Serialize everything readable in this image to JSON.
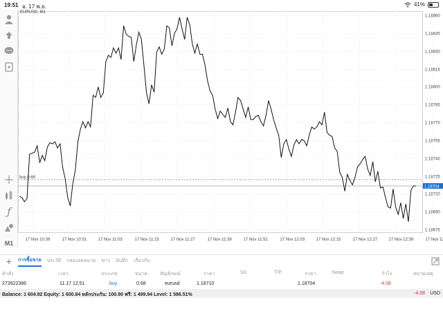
{
  "status": {
    "time": "19:51",
    "date": "อ. 17 พ.ย.",
    "battery": "41%",
    "battery_level": 0.41
  },
  "chart": {
    "symbol_label": "EURUSD, M1",
    "price_line_label": "buy 0.68",
    "current_price": "1.18704",
    "current_price_color": "#1e6fd0",
    "y_ticks": [
      "1.18860",
      "1.18845",
      "1.18830",
      "1.18815",
      "1.18800",
      "1.18785",
      "1.18770",
      "1.18755",
      "1.18740",
      "1.18725",
      "1.18720",
      "1.18690",
      "1.18675"
    ],
    "x_ticks": [
      "17 Nov 10:39",
      "17 Nov 10:51",
      "17 Nov 11:03",
      "17 Nov 11:15",
      "17 Nov 11:27",
      "17 Nov 11:39",
      "17 Nov 11:51",
      "17 Nov 12:03",
      "17 Nov 12:15",
      "17 Nov 12:27",
      "17 Nov 12:39",
      "17 Nov 12:51"
    ]
  },
  "chart_data": {
    "type": "line",
    "title": "EURUSD, M1",
    "xlabel": "",
    "ylabel": "",
    "grid": true,
    "ylim": [
      1.1866,
      1.1887
    ],
    "y_ticks": [
      1.1886,
      1.18845,
      1.1883,
      1.18815,
      1.188,
      1.18785,
      1.1877,
      1.18755,
      1.1874,
      1.18725,
      1.1872,
      1.1869,
      1.18675
    ],
    "x_ticks": [
      "17 Nov 10:39",
      "17 Nov 10:51",
      "17 Nov 11:03",
      "17 Nov 11:15",
      "17 Nov 11:27",
      "17 Nov 11:39",
      "17 Nov 11:51",
      "17 Nov 12:03",
      "17 Nov 12:15",
      "17 Nov 12:27",
      "17 Nov 12:39",
      "17 Nov 12:51"
    ],
    "entry_price": 1.1871,
    "current_price": 1.18704,
    "series": [
      {
        "values": [
          1.18694,
          1.18693,
          1.18689,
          1.18692,
          1.18734,
          1.18735,
          1.18736,
          1.18742,
          1.18726,
          1.18733,
          1.18728,
          1.18741,
          1.18745,
          1.18744,
          1.18746,
          1.1874,
          1.18744,
          1.18722,
          1.18711,
          1.18693,
          1.18685,
          1.18706,
          1.18719,
          1.18746,
          1.18758,
          1.18765,
          1.18759,
          1.18765,
          1.1876,
          1.1879,
          1.18788,
          1.18798,
          1.18788,
          1.18792,
          1.18822,
          1.18828,
          1.18826,
          1.18835,
          1.1883,
          1.18835,
          1.18824,
          1.18856,
          1.18848,
          1.18846,
          1.18845,
          1.18822,
          1.18838,
          1.1885,
          1.18843,
          1.18818,
          1.18792,
          1.18782,
          1.188,
          1.18793,
          1.18831,
          1.18836,
          1.18829,
          1.18834,
          1.18856,
          1.18854,
          1.18837,
          1.18849,
          1.18853,
          1.18864,
          1.18853,
          1.18843,
          1.18864,
          1.18857,
          1.18839,
          1.1883,
          1.18839,
          1.18829,
          1.18829,
          1.18819,
          1.18804,
          1.18794,
          1.1879,
          1.18777,
          1.18768,
          1.18775,
          1.18772,
          1.18769,
          1.18778,
          1.18765,
          1.18762,
          1.18774,
          1.18788,
          1.18785,
          1.18777,
          1.18769,
          1.18779,
          1.18767,
          1.18767,
          1.1877,
          1.18771,
          1.18765,
          1.18761,
          1.18771,
          1.18785,
          1.18777,
          1.18767,
          1.18759,
          1.18752,
          1.18731,
          1.18744,
          1.18748,
          1.18739,
          1.18732,
          1.18743,
          1.18748,
          1.18744,
          1.18748,
          1.18747,
          1.18742,
          1.18752,
          1.1876,
          1.18758,
          1.1876,
          1.18765,
          1.18762,
          1.18774,
          1.18755,
          1.18752,
          1.18751,
          1.1874,
          1.18737,
          1.18717,
          1.18712,
          1.18699,
          1.18715,
          1.18709,
          1.18705,
          1.18712,
          1.18722,
          1.18725,
          1.18729,
          1.18732,
          1.1872,
          1.18714,
          1.18727,
          1.18708,
          1.18718,
          1.18702,
          1.18703,
          1.18693,
          1.18684,
          1.18683,
          1.18701,
          1.18684,
          1.18677,
          1.18688,
          1.18673,
          1.18687,
          1.1867,
          1.187,
          1.18704,
          1.18704
        ]
      }
    ]
  },
  "tabs": [
    {
      "label": "การซื้อขาย",
      "active": true
    },
    {
      "label": "ประวัติ",
      "active": false
    },
    {
      "label": "กล่องจดหมาย",
      "active": false
    },
    {
      "label": "ข่าว",
      "active": false
    },
    {
      "label": "บันทึก",
      "active": false
    },
    {
      "label": "เกี่ยวกับ",
      "active": false
    }
  ],
  "table": {
    "headers": {
      "order": "คำสั่ง",
      "time": "เวลา",
      "type": "ประเภท",
      "volume": "ขนาด",
      "symbol": "สัญลักษณ์",
      "price": "ราคา",
      "sl": "S/L",
      "tp": "T/P",
      "price2": "ราคา",
      "swap": "Swap",
      "profit": "กำไร",
      "comment": "หมายเหตุ"
    },
    "rows": [
      {
        "order": "273922386",
        "time": "11.17 12:51",
        "type": "buy",
        "volume": "0.68",
        "symbol": "eurusd",
        "price": "1.18710",
        "sl": "",
        "tp": "",
        "price2": "1.18704",
        "swap": "",
        "profit": "-4.08",
        "comment": ""
      }
    ]
  },
  "balance": {
    "text": "Balance: 1 604.92 Equity: 1 600.84 หลักประกัน: 100.90 ฟรี: 1 499.94 Level: 1 586.51%",
    "total": "-4.08",
    "currency": "USD"
  }
}
